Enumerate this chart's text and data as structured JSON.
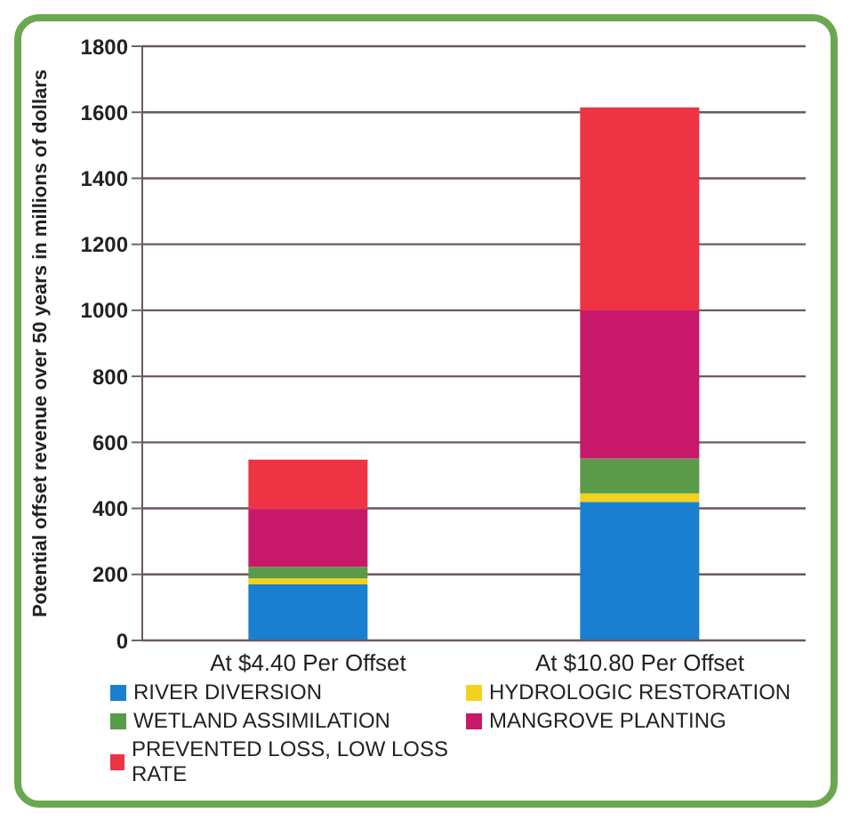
{
  "chart_data": {
    "type": "bar",
    "stacked": true,
    "ylabel": "Potential offset revenue over 50 years in millions of dollars",
    "categories": [
      "At $4.40 Per Offset",
      "At $10.80 Per Offset"
    ],
    "series": [
      {
        "name": "RIVER DIVERSION",
        "color": "#1a7fd0",
        "values": [
          170,
          420
        ]
      },
      {
        "name": "HYDROLOGIC RESTORATION",
        "color": "#f2d21a",
        "values": [
          18,
          25
        ]
      },
      {
        "name": "WETLAND ASSIMILATION",
        "color": "#5a9a48",
        "values": [
          35,
          106
        ]
      },
      {
        "name": "MANGROVE PLANTING",
        "color": "#c8186a",
        "values": [
          175,
          449
        ]
      },
      {
        "name": "PREVENTED LOSS, LOW LOSS RATE",
        "color": "#ee3344",
        "values": [
          150,
          615
        ]
      }
    ],
    "ylim": [
      0,
      1800
    ],
    "yticks": [
      0,
      200,
      400,
      600,
      800,
      1000,
      1200,
      1400,
      1600,
      1800
    ],
    "grid": "y",
    "legend": "bottom"
  }
}
